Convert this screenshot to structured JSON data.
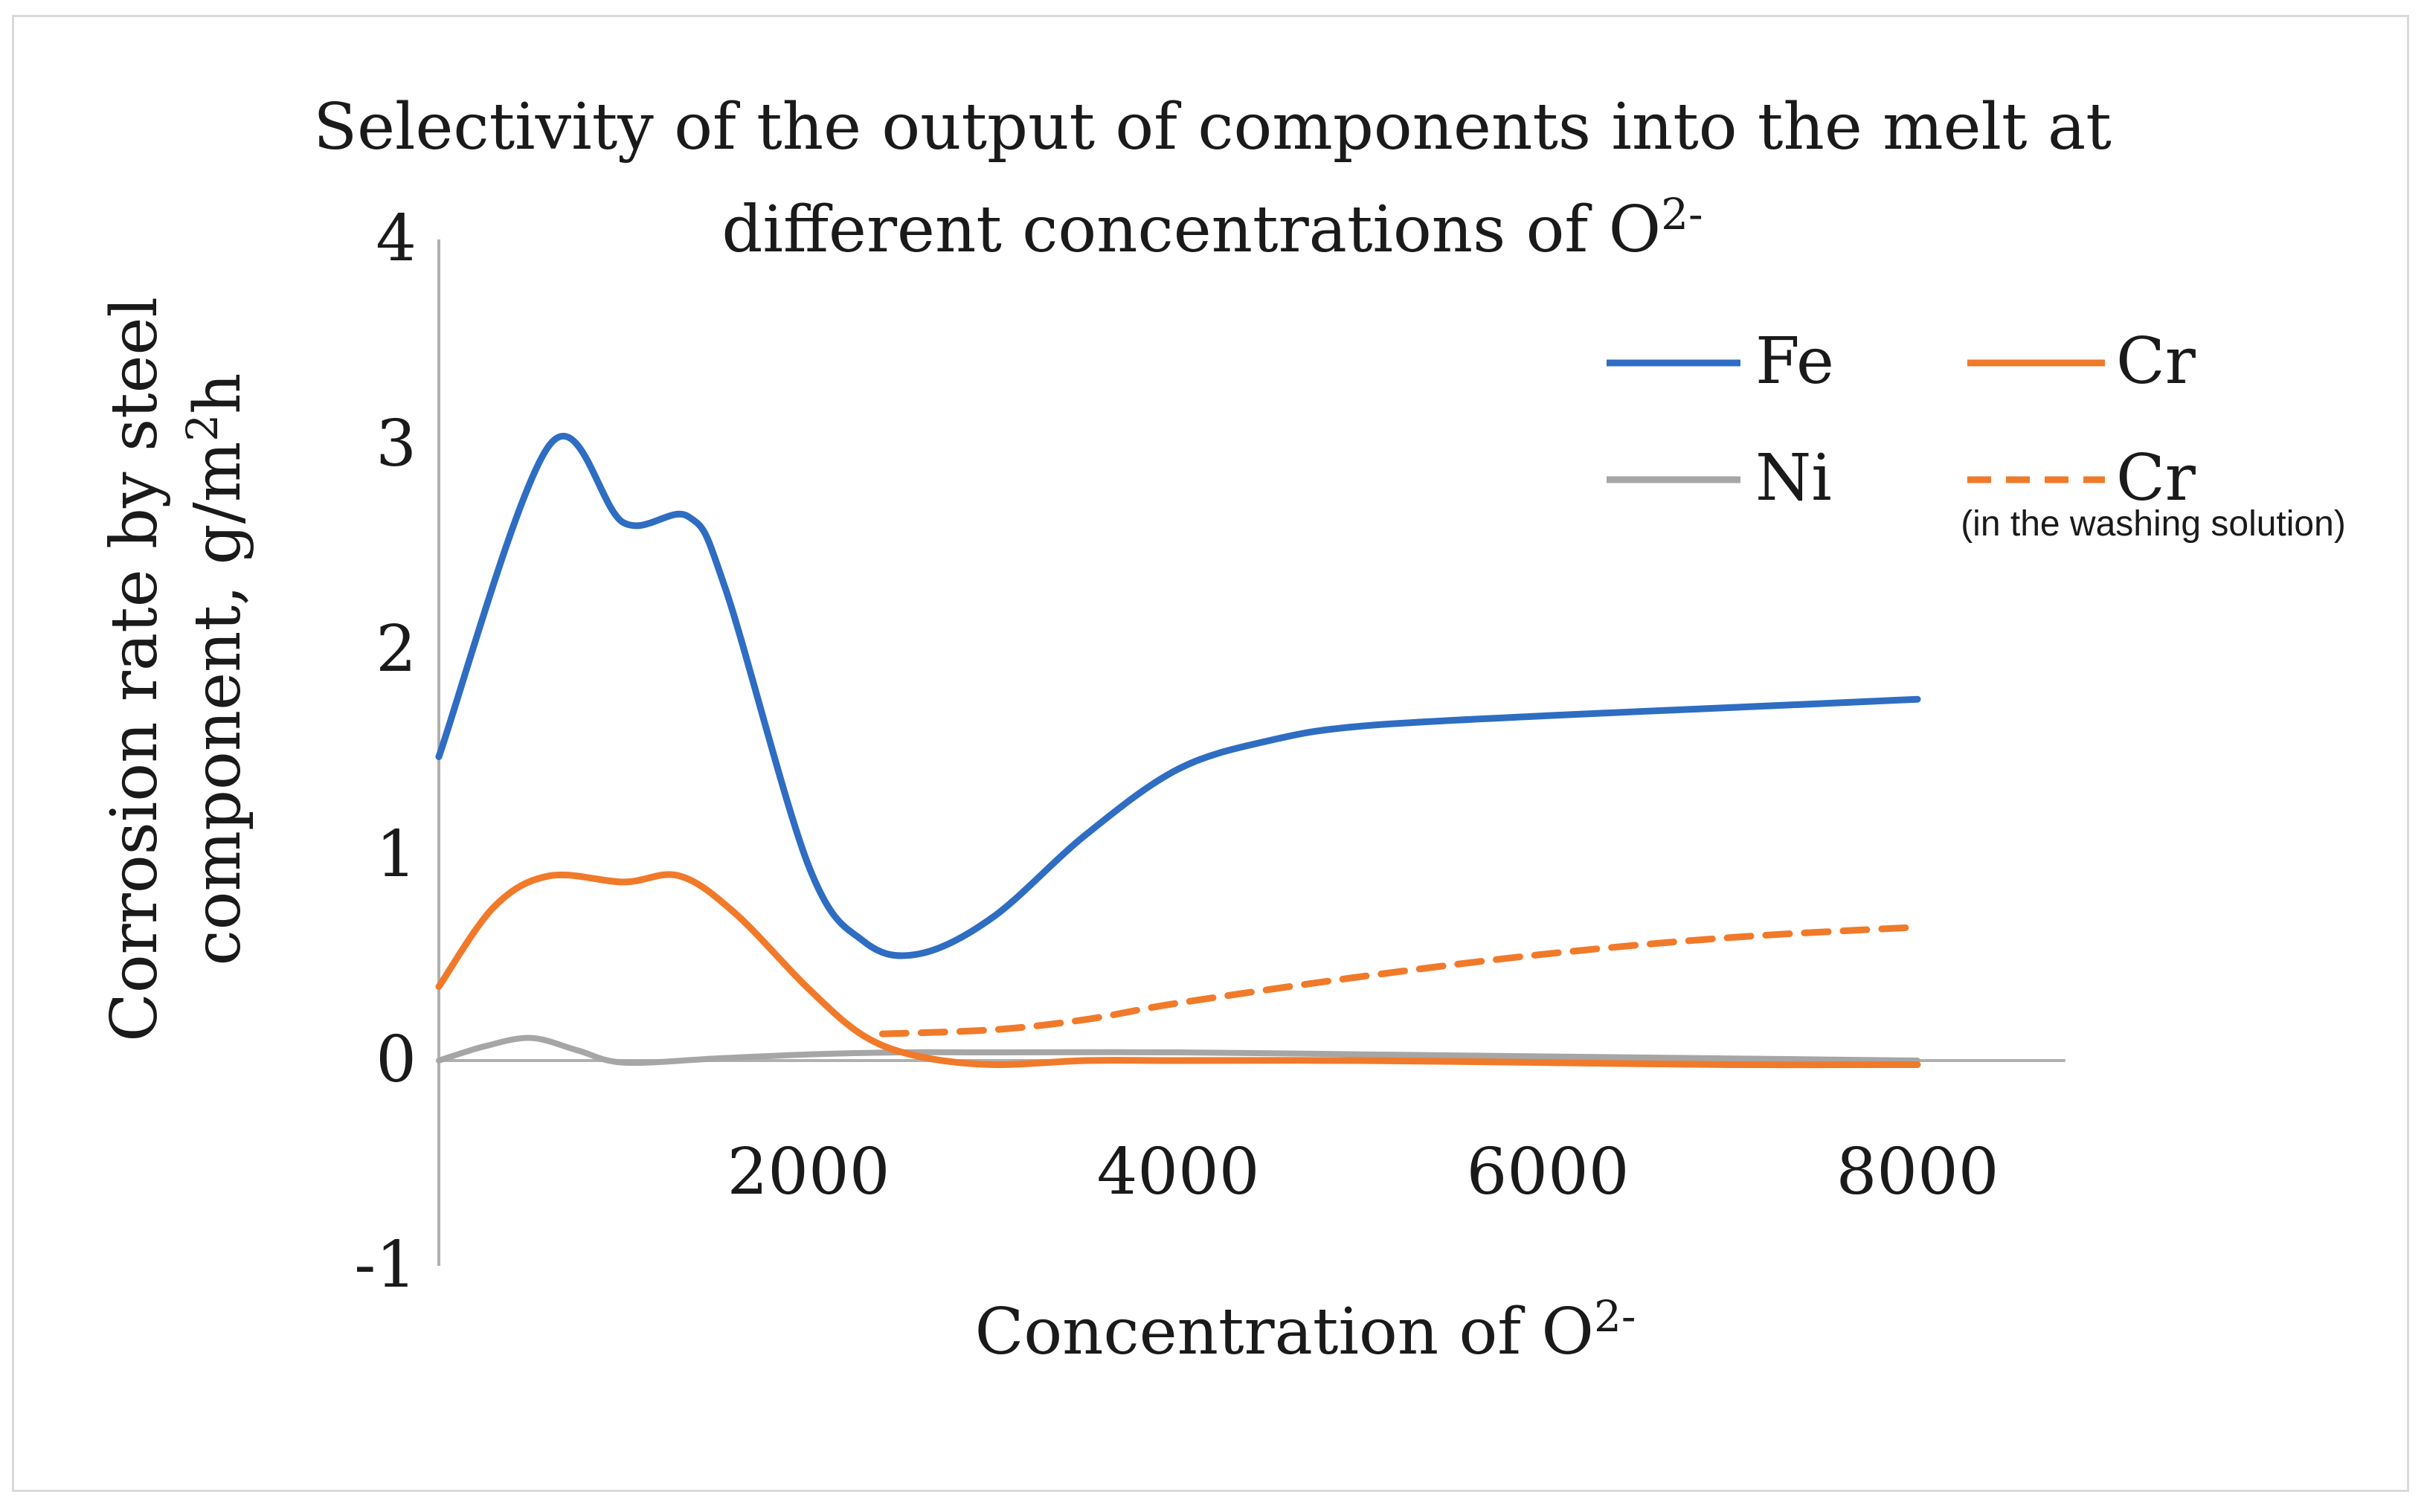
{
  "chart_data": {
    "type": "line",
    "title_line1": "Selectivity of the output of components into the melt at",
    "title_line2_text": "different concentrations of O",
    "title_line2_sup": "2-",
    "xlabel_text": "Concentration of O",
    "xlabel_sup": "2-",
    "ylabel_line1": "Corrosion rate by steel",
    "ylabel_line2_text": "component, g/m",
    "ylabel_line2_sup": "2",
    "ylabel_line2_tail": "h",
    "xlim": [
      0,
      8800
    ],
    "ylim": [
      -1,
      4
    ],
    "x_ticks": [
      2000,
      4000,
      6000,
      8000
    ],
    "x_tick_labels": [
      "2000",
      "4000",
      "6000",
      "8000"
    ],
    "y_ticks": [
      -1,
      0,
      1,
      2,
      3,
      4
    ],
    "y_tick_labels": [
      "-1",
      "0",
      "1",
      "2",
      "3",
      "4"
    ],
    "legend_position": "top-right",
    "legend_note": "(in the washing solution)",
    "series": [
      {
        "key": "fe",
        "name": "Fe",
        "color": "#2e6dc2",
        "dash": "solid",
        "x": [
          0,
          600,
          1000,
          1350,
          1550,
          2000,
          2300,
          2600,
          3000,
          3500,
          4000,
          4500,
          5000,
          6000,
          7000,
          8000
        ],
        "y": [
          1.48,
          3.0,
          2.62,
          2.65,
          2.3,
          0.95,
          0.58,
          0.52,
          0.7,
          1.1,
          1.42,
          1.56,
          1.63,
          1.68,
          1.72,
          1.76
        ]
      },
      {
        "key": "cr",
        "name": "Cr",
        "color": "#f07a2a",
        "dash": "solid",
        "x": [
          0,
          300,
          600,
          1000,
          1300,
          1600,
          2000,
          2300,
          2600,
          3000,
          3500,
          4000,
          5000,
          6000,
          7000,
          8000
        ],
        "y": [
          0.36,
          0.75,
          0.9,
          0.87,
          0.9,
          0.72,
          0.35,
          0.12,
          0.02,
          -0.02,
          0.0,
          0.0,
          0.0,
          -0.01,
          -0.02,
          -0.02
        ]
      },
      {
        "key": "ni",
        "name": "Ni",
        "color": "#a6a6a6",
        "dash": "solid",
        "x": [
          0,
          250,
          500,
          750,
          1000,
          1500,
          2000,
          2500,
          3000,
          4000,
          5000,
          6000,
          7000,
          8000
        ],
        "y": [
          0.0,
          0.07,
          0.11,
          0.05,
          -0.01,
          0.01,
          0.03,
          0.04,
          0.04,
          0.04,
          0.03,
          0.02,
          0.01,
          0.0
        ]
      },
      {
        "key": "cr_wash",
        "name": "Cr",
        "color": "#f07a2a",
        "dash": "dashed",
        "x": [
          2400,
          3000,
          3500,
          4000,
          5000,
          6000,
          7000,
          8000
        ],
        "y": [
          0.13,
          0.15,
          0.2,
          0.28,
          0.41,
          0.52,
          0.6,
          0.65
        ]
      }
    ]
  }
}
